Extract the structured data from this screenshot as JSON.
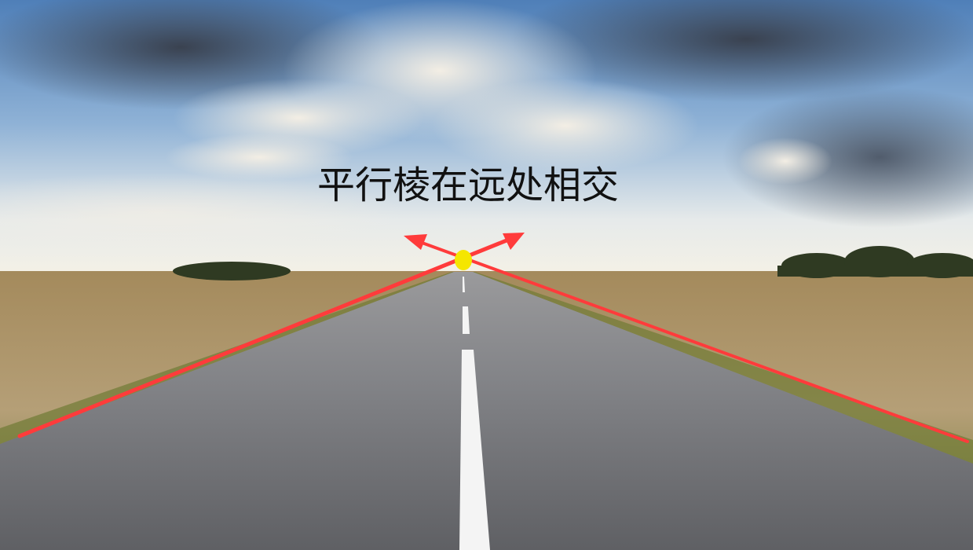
{
  "title": "平行棱在远处相交"
}
